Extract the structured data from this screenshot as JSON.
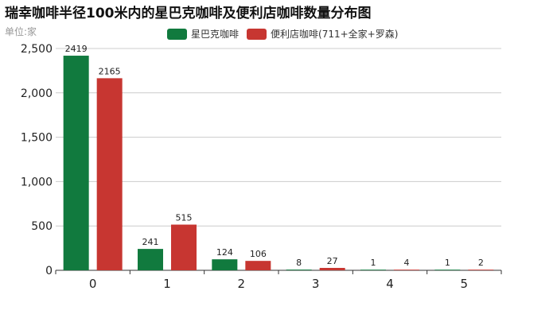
{
  "chart_data": {
    "type": "bar",
    "title": "瑞幸咖啡半径100米内的星巴克咖啡及便利店咖啡数量分布图",
    "subtitle": "单位:家",
    "categories": [
      "0",
      "1",
      "2",
      "3",
      "4",
      "5"
    ],
    "series": [
      {
        "name": "星巴克咖啡",
        "color": "#117a3e",
        "values": [
          2419,
          241,
          124,
          8,
          1,
          1
        ]
      },
      {
        "name": "便利店咖啡(711+全家+罗森)",
        "color": "#c73631",
        "values": [
          2165,
          515,
          106,
          27,
          4,
          2
        ]
      }
    ],
    "ylim": [
      0,
      2500
    ],
    "yticks": [
      0,
      500,
      1000,
      1500,
      2000,
      2500
    ],
    "ytick_labels": [
      "0",
      "500",
      "1,000",
      "1,500",
      "2,000",
      "2,500"
    ],
    "grid": true,
    "legend": "top-center"
  }
}
